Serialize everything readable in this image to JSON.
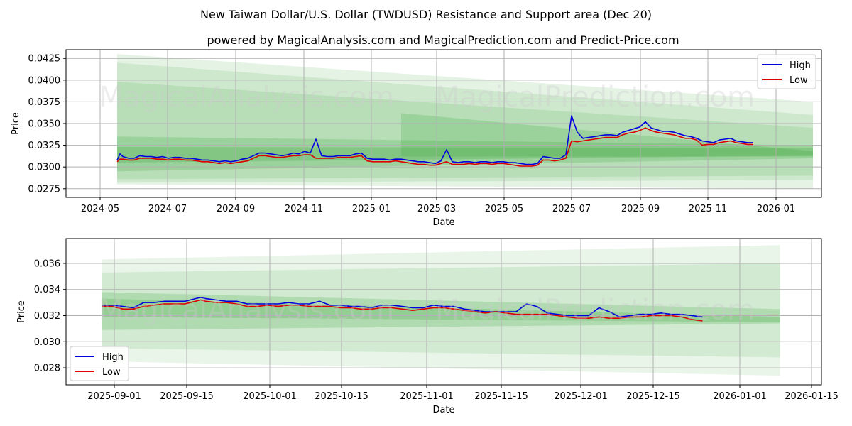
{
  "page": {
    "title": "New Taiwan Dollar/U.S. Dollar (TWDUSD) Resistance and Support area (Dec 20)",
    "subtitle": "powered by MagicalAnalysis.com and MagicalPrediction.com and Predict-Price.com",
    "watermarks": [
      "MagicalAnalysis.com",
      "MagicalPrediction.com"
    ]
  },
  "colors": {
    "high": "#0000dd",
    "low": "#dd0000",
    "band": "#2ca02c",
    "grid": "#b0b0b0"
  },
  "chart_data": [
    {
      "type": "line",
      "xlabel": "Date",
      "ylabel": "Price",
      "x_ticks": [
        "2024-05",
        "2024-07",
        "2024-09",
        "2024-11",
        "2025-01",
        "2025-03",
        "2025-05",
        "2025-07",
        "2025-09",
        "2025-11",
        "2026-01"
      ],
      "y_ticks": [
        "0.0275",
        "0.0300",
        "0.0325",
        "0.0350",
        "0.0375",
        "0.0400",
        "0.0425"
      ],
      "ylim": [
        0.0265,
        0.0435
      ],
      "xlim": [
        -9.0,
        124.0
      ],
      "legend": [
        "High",
        "Low"
      ],
      "legend_position": "top-right",
      "bands": [
        {
          "x0": 0.0,
          "x1": 122.5,
          "top": [
            0.043,
            0.0375
          ],
          "bottom": [
            0.028,
            0.0275
          ],
          "opacity": 0.12
        },
        {
          "x0": 0.0,
          "x1": 122.5,
          "top": [
            0.042,
            0.036
          ],
          "bottom": [
            0.0282,
            0.0285
          ],
          "opacity": 0.12
        },
        {
          "x0": 0.0,
          "x1": 122.5,
          "top": [
            0.0398,
            0.0345
          ],
          "bottom": [
            0.0286,
            0.029
          ],
          "opacity": 0.14
        },
        {
          "x0": 0.0,
          "x1": 122.5,
          "top": [
            0.0335,
            0.0325
          ],
          "bottom": [
            0.0295,
            0.031
          ],
          "opacity": 0.2
        },
        {
          "x0": 0.0,
          "x1": 122.5,
          "top": [
            0.0323,
            0.0322
          ],
          "bottom": [
            0.0305,
            0.0313
          ],
          "opacity": 0.22
        },
        {
          "x0": 50.0,
          "x1": 122.5,
          "top": [
            0.0362,
            0.0318
          ],
          "bottom": [
            0.0312,
            0.0312
          ],
          "opacity": 0.2
        }
      ],
      "series": [
        {
          "name": "High",
          "x": [
            0.0,
            0.5,
            1.0,
            2.0,
            3.0,
            4.0,
            5.0,
            6.0,
            7.0,
            8.0,
            9.0,
            10.0,
            11.0,
            12.0,
            13.0,
            14.0,
            15.0,
            16.0,
            17.0,
            18.0,
            19.0,
            20.0,
            21.0,
            22.0,
            23.0,
            24.0,
            25.0,
            26.0,
            27.0,
            28.0,
            29.0,
            30.0,
            31.0,
            32.0,
            33.0,
            34.0,
            35.0,
            36.0,
            37.0,
            38.0,
            39.0,
            40.0,
            41.0,
            42.0,
            43.0,
            44.0,
            45.0,
            46.0,
            47.0,
            48.0,
            49.0,
            50.0,
            51.0,
            52.0,
            53.0,
            54.0,
            55.0,
            56.0,
            57.0,
            58.0,
            59.0,
            60.0,
            61.0,
            62.0,
            63.0,
            64.0,
            65.0,
            66.0,
            67.0,
            68.0,
            69.0,
            70.0,
            71.0,
            72.0,
            73.0,
            74.0,
            75.0,
            76.0,
            77.0,
            78.0,
            79.0,
            80.0,
            81.0,
            82.0,
            83.0,
            84.0,
            85.0,
            86.0,
            87.0,
            88.0,
            89.0,
            90.0,
            91.0,
            92.0,
            93.0,
            94.0,
            95.0,
            96.0,
            97.0,
            98.0,
            99.0,
            100.0,
            101.0,
            102.0,
            103.0,
            104.0,
            105.0,
            106.0,
            107.0,
            108.0,
            109.0,
            110.0,
            111.0,
            112.0
          ],
          "values": [
            0.0308,
            0.0315,
            0.0312,
            0.031,
            0.031,
            0.0313,
            0.0312,
            0.0312,
            0.0311,
            0.0312,
            0.031,
            0.0311,
            0.0311,
            0.031,
            0.031,
            0.0309,
            0.0308,
            0.0308,
            0.0307,
            0.0306,
            0.0307,
            0.0306,
            0.0307,
            0.0309,
            0.031,
            0.0313,
            0.0316,
            0.0316,
            0.0315,
            0.0314,
            0.0313,
            0.0314,
            0.0316,
            0.0315,
            0.0318,
            0.0316,
            0.0332,
            0.0313,
            0.0312,
            0.0312,
            0.0313,
            0.0313,
            0.0313,
            0.0315,
            0.0316,
            0.031,
            0.0309,
            0.0309,
            0.0309,
            0.0308,
            0.0309,
            0.0309,
            0.0308,
            0.0307,
            0.0306,
            0.0306,
            0.0305,
            0.0304,
            0.0307,
            0.032,
            0.0306,
            0.0305,
            0.0306,
            0.0306,
            0.0305,
            0.0306,
            0.0306,
            0.0305,
            0.0306,
            0.0306,
            0.0305,
            0.0305,
            0.0304,
            0.0303,
            0.0303,
            0.0304,
            0.0312,
            0.0311,
            0.031,
            0.031,
            0.0314,
            0.0359,
            0.034,
            0.0333,
            0.0334,
            0.0335,
            0.0336,
            0.0337,
            0.0337,
            0.0336,
            0.034,
            0.0342,
            0.0344,
            0.0346,
            0.0352,
            0.0345,
            0.0343,
            0.0341,
            0.0341,
            0.034,
            0.0338,
            0.0336,
            0.0335,
            0.0333,
            0.033,
            0.0329,
            0.0328,
            0.0331,
            0.0332,
            0.0333,
            0.033,
            0.0329,
            0.0328,
            0.0328
          ]
        },
        {
          "name": "Low",
          "x": [
            0.0,
            0.5,
            1.0,
            2.0,
            3.0,
            4.0,
            5.0,
            6.0,
            7.0,
            8.0,
            9.0,
            10.0,
            11.0,
            12.0,
            13.0,
            14.0,
            15.0,
            16.0,
            17.0,
            18.0,
            19.0,
            20.0,
            21.0,
            22.0,
            23.0,
            24.0,
            25.0,
            26.0,
            27.0,
            28.0,
            29.0,
            30.0,
            31.0,
            32.0,
            33.0,
            34.0,
            35.0,
            36.0,
            37.0,
            38.0,
            39.0,
            40.0,
            41.0,
            42.0,
            43.0,
            44.0,
            45.0,
            46.0,
            47.0,
            48.0,
            49.0,
            50.0,
            51.0,
            52.0,
            53.0,
            54.0,
            55.0,
            56.0,
            57.0,
            58.0,
            59.0,
            60.0,
            61.0,
            62.0,
            63.0,
            64.0,
            65.0,
            66.0,
            67.0,
            68.0,
            69.0,
            70.0,
            71.0,
            72.0,
            73.0,
            74.0,
            75.0,
            76.0,
            77.0,
            78.0,
            79.0,
            80.0,
            81.0,
            82.0,
            83.0,
            84.0,
            85.0,
            86.0,
            87.0,
            88.0,
            89.0,
            90.0,
            91.0,
            92.0,
            93.0,
            94.0,
            95.0,
            96.0,
            97.0,
            98.0,
            99.0,
            100.0,
            101.0,
            102.0,
            103.0,
            104.0,
            105.0,
            106.0,
            107.0,
            108.0,
            109.0,
            110.0,
            111.0,
            112.0
          ],
          "values": [
            0.0306,
            0.0309,
            0.0309,
            0.0308,
            0.0308,
            0.031,
            0.031,
            0.031,
            0.0309,
            0.0309,
            0.0308,
            0.0309,
            0.0309,
            0.0308,
            0.0308,
            0.0307,
            0.0306,
            0.0306,
            0.0305,
            0.0304,
            0.0305,
            0.0304,
            0.0305,
            0.0306,
            0.0307,
            0.031,
            0.0313,
            0.0313,
            0.0312,
            0.0311,
            0.0311,
            0.0312,
            0.0313,
            0.0313,
            0.0314,
            0.0314,
            0.031,
            0.031,
            0.031,
            0.031,
            0.0311,
            0.0311,
            0.0311,
            0.0312,
            0.0313,
            0.0307,
            0.0306,
            0.0306,
            0.0306,
            0.0306,
            0.0307,
            0.0306,
            0.0305,
            0.0304,
            0.0303,
            0.0303,
            0.0302,
            0.0302,
            0.0304,
            0.0306,
            0.0303,
            0.0303,
            0.0303,
            0.0304,
            0.0303,
            0.0304,
            0.0304,
            0.0303,
            0.0304,
            0.0304,
            0.0303,
            0.0302,
            0.0301,
            0.0301,
            0.0301,
            0.0302,
            0.0308,
            0.0308,
            0.0307,
            0.0308,
            0.031,
            0.033,
            0.0329,
            0.033,
            0.0331,
            0.0332,
            0.0333,
            0.0334,
            0.0334,
            0.0334,
            0.0337,
            0.0339,
            0.034,
            0.0342,
            0.0345,
            0.0342,
            0.034,
            0.0339,
            0.0338,
            0.0337,
            0.0335,
            0.0333,
            0.0333,
            0.0331,
            0.0325,
            0.0326,
            0.0326,
            0.0328,
            0.0329,
            0.033,
            0.0328,
            0.0327,
            0.0326,
            0.0326
          ]
        }
      ]
    },
    {
      "type": "line",
      "xlabel": "Date",
      "ylabel": "Price",
      "x_ticks": [
        "2025-09-01",
        "2025-09-15",
        "2025-10-01",
        "2025-10-15",
        "2025-11-01",
        "2025-11-15",
        "2025-12-01",
        "2025-12-15",
        "2026-01-01",
        "2026-01-15"
      ],
      "y_ticks": [
        "0.028",
        "0.030",
        "0.032",
        "0.034",
        "0.036"
      ],
      "ylim": [
        0.0267,
        0.0379
      ],
      "xlim": [
        -7.0,
        139.0
      ],
      "legend": [
        "High",
        "Low"
      ],
      "legend_position": "bottom-left",
      "bands": [
        {
          "x0": 0.0,
          "x1": 131.0,
          "top": [
            0.0363,
            0.0374
          ],
          "bottom": [
            0.0285,
            0.0274
          ],
          "opacity": 0.1
        },
        {
          "x0": 0.0,
          "x1": 131.0,
          "top": [
            0.0353,
            0.036
          ],
          "bottom": [
            0.0295,
            0.0288
          ],
          "opacity": 0.12
        },
        {
          "x0": 0.0,
          "x1": 131.0,
          "top": [
            0.0338,
            0.0325
          ],
          "bottom": [
            0.0309,
            0.0314
          ],
          "opacity": 0.2
        },
        {
          "x0": 0.0,
          "x1": 131.0,
          "top": [
            0.0333,
            0.0319
          ],
          "bottom": [
            0.0319,
            0.0315
          ],
          "opacity": 0.22
        }
      ],
      "series": [
        {
          "name": "High",
          "x": [
            0.0,
            2.0,
            4.0,
            6.0,
            8.0,
            10.0,
            12.0,
            14.0,
            16.0,
            18.0,
            19.0,
            20.0,
            22.0,
            24.0,
            26.0,
            28.0,
            30.0,
            32.0,
            34.0,
            36.0,
            38.0,
            40.0,
            42.0,
            44.0,
            46.0,
            48.0,
            50.0,
            52.0,
            54.0,
            56.0,
            58.0,
            60.0,
            62.0,
            64.0,
            66.0,
            68.0,
            70.0,
            72.0,
            74.0,
            76.0,
            78.0,
            80.0,
            82.0,
            84.0,
            86.0,
            88.0,
            90.0,
            92.0,
            94.0,
            96.0,
            98.0,
            100.0,
            102.0,
            104.0,
            106.0,
            108.0,
            110.0,
            112.0,
            114.0,
            116.0
          ],
          "values": [
            0.0328,
            0.0328,
            0.0327,
            0.0326,
            0.033,
            0.033,
            0.0331,
            0.0331,
            0.0331,
            0.0333,
            0.0334,
            0.0333,
            0.0332,
            0.0331,
            0.0331,
            0.0329,
            0.0329,
            0.0329,
            0.0329,
            0.033,
            0.0329,
            0.0329,
            0.0331,
            0.0328,
            0.0328,
            0.0327,
            0.0327,
            0.0326,
            0.0328,
            0.0328,
            0.0327,
            0.0326,
            0.0326,
            0.0328,
            0.0327,
            0.0327,
            0.0325,
            0.0324,
            0.0323,
            0.0323,
            0.0323,
            0.0323,
            0.0329,
            0.0327,
            0.0322,
            0.0321,
            0.032,
            0.032,
            0.032,
            0.0326,
            0.0323,
            0.0319,
            0.032,
            0.0321,
            0.0321,
            0.0322,
            0.0321,
            0.0321,
            0.032,
            0.0319
          ]
        },
        {
          "name": "Low",
          "x": [
            0.0,
            2.0,
            4.0,
            6.0,
            8.0,
            10.0,
            12.0,
            14.0,
            16.0,
            18.0,
            19.0,
            20.0,
            22.0,
            24.0,
            26.0,
            28.0,
            30.0,
            32.0,
            34.0,
            36.0,
            38.0,
            40.0,
            42.0,
            44.0,
            46.0,
            48.0,
            50.0,
            52.0,
            54.0,
            56.0,
            58.0,
            60.0,
            62.0,
            64.0,
            66.0,
            68.0,
            70.0,
            72.0,
            74.0,
            76.0,
            78.0,
            80.0,
            82.0,
            84.0,
            86.0,
            88.0,
            90.0,
            92.0,
            94.0,
            96.0,
            98.0,
            100.0,
            102.0,
            104.0,
            106.0,
            108.0,
            110.0,
            112.0,
            114.0,
            116.0
          ],
          "values": [
            0.0327,
            0.0327,
            0.0325,
            0.0325,
            0.0327,
            0.0328,
            0.0329,
            0.0329,
            0.0329,
            0.0331,
            0.0332,
            0.0331,
            0.033,
            0.033,
            0.0329,
            0.0327,
            0.0327,
            0.0328,
            0.0327,
            0.0328,
            0.0328,
            0.0327,
            0.0327,
            0.0327,
            0.0326,
            0.0326,
            0.0325,
            0.0325,
            0.0326,
            0.0326,
            0.0325,
            0.0324,
            0.0325,
            0.0326,
            0.0326,
            0.0325,
            0.0324,
            0.0323,
            0.0322,
            0.0323,
            0.0322,
            0.0321,
            0.0321,
            0.0321,
            0.0321,
            0.032,
            0.0319,
            0.0318,
            0.0318,
            0.0319,
            0.0318,
            0.0318,
            0.0319,
            0.0319,
            0.032,
            0.032,
            0.032,
            0.0319,
            0.0317,
            0.0316
          ]
        }
      ]
    }
  ]
}
